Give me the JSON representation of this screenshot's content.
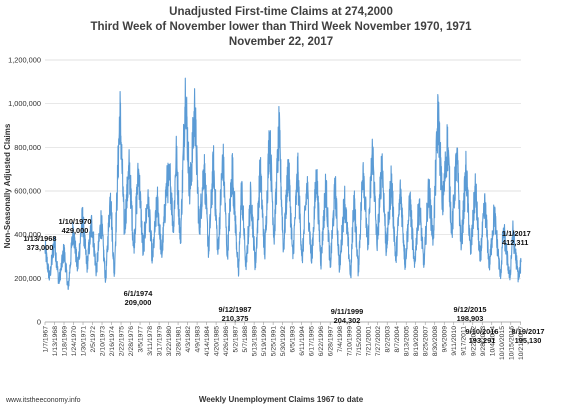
{
  "chart_data": {
    "type": "line",
    "title": [
      "Unadjusted First-time Claims at 274,2000",
      "Third Week of November lower than Third Week November 1970, 1971",
      "November 22, 2017"
    ],
    "xlabel": "Weekly Unemployment Claims 1967 to date",
    "ylabel": "Non-Seasonally Adjusted Claims",
    "ylim": [
      0,
      1200000
    ],
    "yticks": [
      0,
      200000,
      400000,
      600000,
      800000,
      1000000,
      1200000
    ],
    "ytick_labels": [
      "0",
      "200,000",
      "400,000",
      "600,000",
      "800,000",
      "1,000,000",
      "1,200,000"
    ],
    "xlim": [
      "1967-01-07",
      "2017-11-18"
    ],
    "grid": true,
    "legend": "none",
    "color": "#5b9bd5",
    "xtick_labels": [
      "1/7/1967",
      "1/13/1968",
      "1/18/1969",
      "1/24/1970",
      "1/30/1971",
      "2/5/1972",
      "2/10/1973",
      "2/16/1974",
      "2/22/1975",
      "2/28/1976",
      "3/5/1977",
      "3/11/1978",
      "3/17/1979",
      "3/22/1980",
      "3/28/1981",
      "4/3/1982",
      "4/9/1983",
      "4/14/1984",
      "4/20/1985",
      "4/26/1986",
      "5/2/1987",
      "5/7/1988",
      "5/13/1989",
      "5/19/1990",
      "5/25/1991",
      "5/30/1992",
      "6/5/1993",
      "6/11/1994",
      "6/17/1995",
      "6/22/1996",
      "6/28/1997",
      "7/4/1998",
      "7/10/1999",
      "7/15/2000",
      "7/21/2001",
      "7/27/2002",
      "8/2/2003",
      "8/7/2004",
      "8/13/2005",
      "8/19/2006",
      "8/25/2007",
      "8/30/2008",
      "9/5/2009",
      "9/11/2010",
      "9/17/2011",
      "9/22/2012",
      "9/28/2013",
      "10/4/2014",
      "10/10/2015",
      "10/15/2016",
      "10/21/2017"
    ],
    "keypoints": [
      [
        "1967-01-07",
        340000
      ],
      [
        "1967-07-01",
        200000
      ],
      [
        "1968-01-13",
        373000
      ],
      [
        "1968-07-01",
        180000
      ],
      [
        "1969-01-18",
        330000
      ],
      [
        "1969-07-01",
        150000
      ],
      [
        "1970-01-10",
        429000
      ],
      [
        "1970-07-01",
        240000
      ],
      [
        "1971-01-09",
        480000
      ],
      [
        "1971-07-01",
        250000
      ],
      [
        "1972-01-08",
        460000
      ],
      [
        "1972-07-01",
        230000
      ],
      [
        "1973-01-06",
        470000
      ],
      [
        "1973-07-01",
        190000
      ],
      [
        "1974-01-05",
        590000
      ],
      [
        "1974-06-01",
        209000
      ],
      [
        "1975-01-11",
        970000
      ],
      [
        "1975-07-01",
        420000
      ],
      [
        "1976-01-10",
        710000
      ],
      [
        "1976-07-01",
        340000
      ],
      [
        "1977-01-08",
        700000
      ],
      [
        "1977-07-01",
        320000
      ],
      [
        "1978-01-07",
        580000
      ],
      [
        "1978-07-01",
        280000
      ],
      [
        "1979-01-06",
        560000
      ],
      [
        "1979-07-01",
        300000
      ],
      [
        "1980-01-05",
        630000
      ],
      [
        "1980-06-01",
        650000
      ],
      [
        "1980-10-01",
        410000
      ],
      [
        "1981-01-10",
        780000
      ],
      [
        "1981-07-01",
        360000
      ],
      [
        "1982-01-09",
        1070000
      ],
      [
        "1982-07-01",
        580000
      ],
      [
        "1983-01-08",
        980000
      ],
      [
        "1983-07-01",
        420000
      ],
      [
        "1984-01-07",
        720000
      ],
      [
        "1984-07-01",
        320000
      ],
      [
        "1985-01-05",
        730000
      ],
      [
        "1985-07-01",
        310000
      ],
      [
        "1986-01-11",
        760000
      ],
      [
        "1986-07-01",
        300000
      ],
      [
        "1987-01-10",
        710000
      ],
      [
        "1987-09-12",
        210375
      ],
      [
        "1988-01-09",
        620000
      ],
      [
        "1988-07-01",
        240000
      ],
      [
        "1989-01-07",
        590000
      ],
      [
        "1989-07-01",
        250000
      ],
      [
        "1990-01-06",
        700000
      ],
      [
        "1990-07-01",
        300000
      ],
      [
        "1991-01-05",
        870000
      ],
      [
        "1991-07-01",
        380000
      ],
      [
        "1992-01-11",
        880000
      ],
      [
        "1992-07-01",
        330000
      ],
      [
        "1993-01-09",
        720000
      ],
      [
        "1993-07-01",
        290000
      ],
      [
        "1994-01-08",
        690000
      ],
      [
        "1994-07-01",
        280000
      ],
      [
        "1995-01-07",
        630000
      ],
      [
        "1995-07-01",
        270000
      ],
      [
        "1996-01-13",
        680000
      ],
      [
        "1996-07-01",
        270000
      ],
      [
        "1997-01-11",
        630000
      ],
      [
        "1997-07-01",
        250000
      ],
      [
        "1998-01-10",
        620000
      ],
      [
        "1998-07-01",
        240000
      ],
      [
        "1999-01-09",
        570000
      ],
      [
        "1999-09-11",
        204302
      ],
      [
        "2000-01-08",
        580000
      ],
      [
        "2000-07-01",
        230000
      ],
      [
        "2001-01-06",
        730000
      ],
      [
        "2001-07-01",
        330000
      ],
      [
        "2002-01-05",
        800000
      ],
      [
        "2002-07-01",
        340000
      ],
      [
        "2003-01-11",
        740000
      ],
      [
        "2003-07-01",
        320000
      ],
      [
        "2004-01-10",
        660000
      ],
      [
        "2004-07-01",
        280000
      ],
      [
        "2005-01-08",
        610000
      ],
      [
        "2005-07-01",
        260000
      ],
      [
        "2006-01-07",
        560000
      ],
      [
        "2006-07-01",
        250000
      ],
      [
        "2007-01-06",
        560000
      ],
      [
        "2007-07-01",
        250000
      ],
      [
        "2008-01-05",
        610000
      ],
      [
        "2008-07-01",
        380000
      ],
      [
        "2009-01-10",
        960000
      ],
      [
        "2009-07-01",
        520000
      ],
      [
        "2010-01-09",
        830000
      ],
      [
        "2010-07-01",
        400000
      ],
      [
        "2011-01-08",
        770000
      ],
      [
        "2011-07-01",
        340000
      ],
      [
        "2012-01-07",
        700000
      ],
      [
        "2012-07-01",
        310000
      ],
      [
        "2013-01-05",
        620000
      ],
      [
        "2013-07-01",
        280000
      ],
      [
        "2014-01-11",
        540000
      ],
      [
        "2014-07-01",
        250000
      ],
      [
        "2015-01-10",
        500000
      ],
      [
        "2015-09-12",
        198903
      ],
      [
        "2016-01-02",
        430000
      ],
      [
        "2016-09-10",
        193291
      ],
      [
        "2017-01-01",
        412311
      ],
      [
        "2017-08-19",
        195130
      ],
      [
        "2017-11-18",
        274200
      ]
    ],
    "annotations": [
      {
        "lines": [
          "1/13/1968",
          "373,000"
        ],
        "date": "1968-01-13",
        "value": 373000
      },
      {
        "lines": [
          "1/10/1970",
          "429,000"
        ],
        "date": "1970-01-10",
        "value": 429000
      },
      {
        "lines": [
          "6/1/1974",
          "209,000"
        ],
        "date": "1974-06-01",
        "value": 209000
      },
      {
        "lines": [
          "9/12/1987",
          "210,375"
        ],
        "date": "1987-09-12",
        "value": 210375
      },
      {
        "lines": [
          "9/11/1999",
          "204,302"
        ],
        "date": "1999-09-11",
        "value": 204302
      },
      {
        "lines": [
          "9/12/2015",
          "198,903"
        ],
        "date": "2015-09-12",
        "value": 198903
      },
      {
        "lines": [
          "9/10/2016",
          "193,291"
        ],
        "date": "2016-09-10",
        "value": 193291
      },
      {
        "lines": [
          "1/1/2017",
          "412,311"
        ],
        "date": "2017-01-01",
        "value": 412311
      },
      {
        "lines": [
          "8/19/2017",
          "195,130"
        ],
        "date": "2017-08-19",
        "value": 195130
      }
    ]
  },
  "footer": "www.itstheeconomy.info"
}
